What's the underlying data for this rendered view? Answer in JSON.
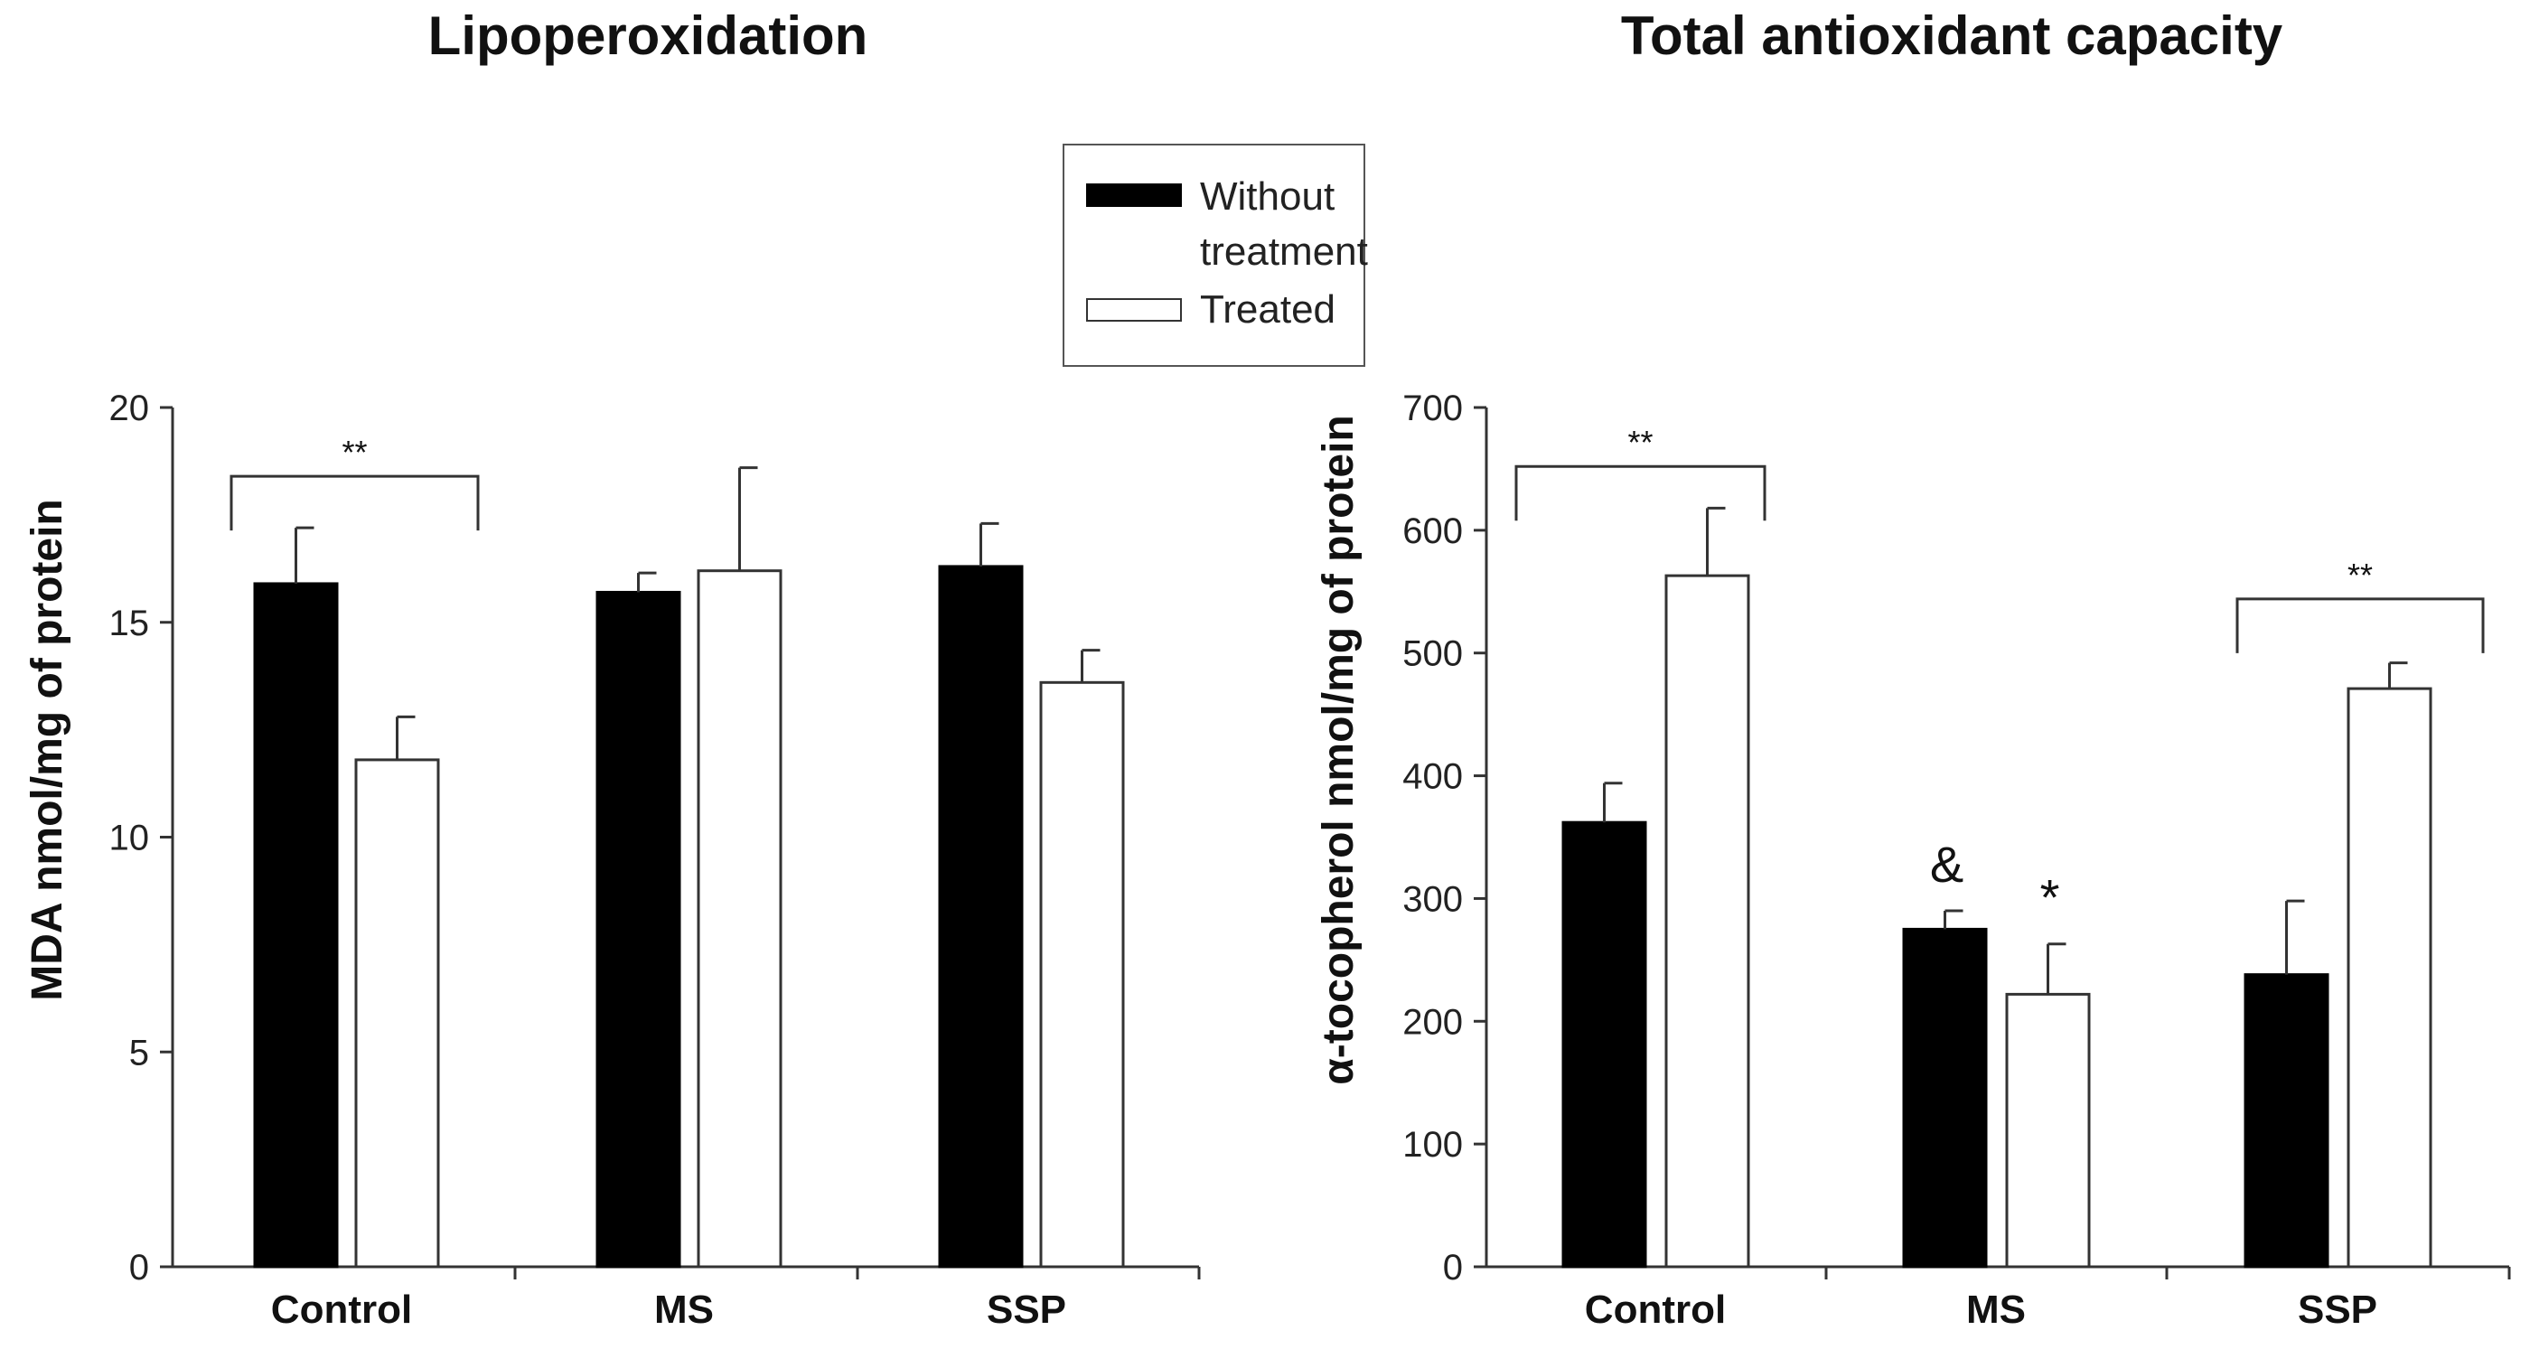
{
  "legend": {
    "series": [
      {
        "name_lines": [
          "Without",
          "treatment"
        ],
        "fill": "#000000",
        "stroke": "#000000"
      },
      {
        "name_lines": [
          "Treated"
        ],
        "fill": "#ffffff",
        "stroke": "#333333"
      }
    ]
  },
  "chart_data": [
    {
      "type": "bar",
      "title": "Lipoperoxidation",
      "xlabel": "",
      "ylabel": "MDA nmol/mg of protein",
      "categories": [
        "Control",
        "MS",
        "SSP"
      ],
      "ylim": [
        0,
        20
      ],
      "yticks": [
        0,
        5,
        10,
        15,
        20
      ],
      "series": [
        {
          "name": "Without treatment",
          "values": [
            15.9,
            15.7,
            16.3
          ],
          "errors": [
            1.3,
            0.45,
            1.0
          ]
        },
        {
          "name": "Treated",
          "values": [
            11.8,
            16.2,
            13.6
          ],
          "errors": [
            1.0,
            2.4,
            0.75
          ]
        }
      ],
      "annotations": [
        {
          "text": "**",
          "type": "bracket",
          "category": 0,
          "y": 18.4
        }
      ]
    },
    {
      "type": "bar",
      "title": "Total antioxidant capacity",
      "xlabel": "",
      "ylabel": "α-tocopherol nmol/mg of protein",
      "categories": [
        "Control",
        "MS",
        "SSP"
      ],
      "ylim": [
        0,
        700
      ],
      "yticks": [
        0,
        100,
        200,
        300,
        400,
        500,
        600,
        700
      ],
      "series": [
        {
          "name": "Without treatment",
          "values": [
            362,
            275,
            238
          ],
          "errors": [
            32,
            15,
            60
          ]
        },
        {
          "name": "Treated",
          "values": [
            563,
            222,
            471
          ],
          "errors": [
            55,
            41,
            21
          ]
        }
      ],
      "annotations": [
        {
          "text": "**",
          "type": "bracket",
          "category": 0,
          "y": 652
        },
        {
          "text": "**",
          "type": "bracket",
          "category": 2,
          "y": 544
        },
        {
          "text": "&",
          "type": "label",
          "category": 1,
          "series": 0
        },
        {
          "text": "*",
          "type": "label",
          "category": 1,
          "series": 1
        }
      ]
    }
  ]
}
